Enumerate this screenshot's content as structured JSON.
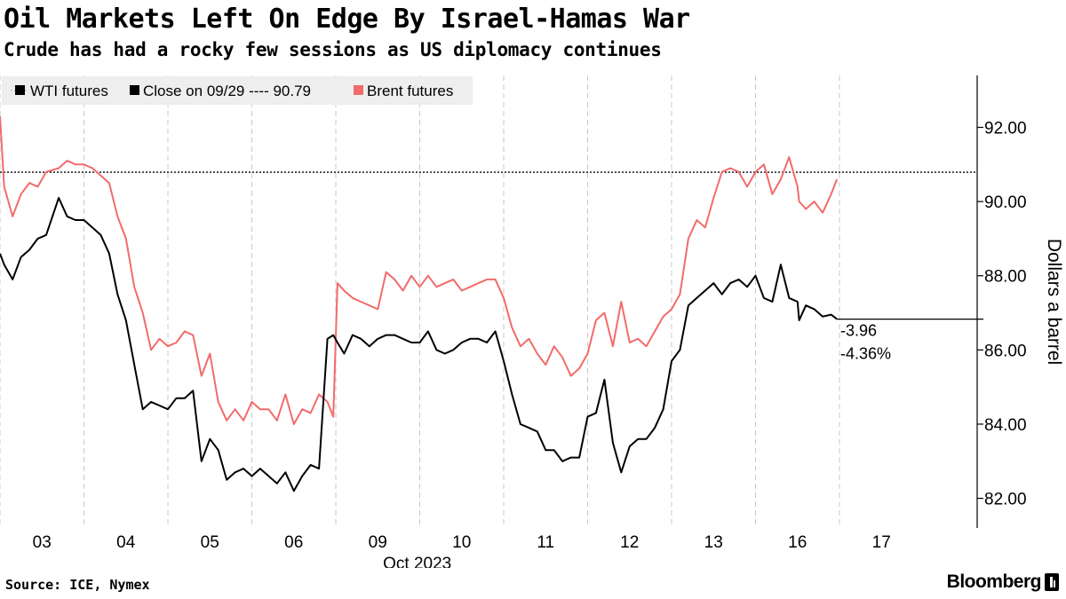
{
  "header": {
    "title": "Oil Markets Left On Edge By Israel-Hamas War",
    "subtitle": "Crude has had a rocky few sessions as US diplomacy continues"
  },
  "footer": {
    "source": "Source: ICE, Nymex",
    "brand": "Bloomberg"
  },
  "chart_data": {
    "type": "line",
    "ylabel": "Dollars a barrel",
    "ylim": [
      81.2,
      93.4
    ],
    "yticks": [
      "82.00",
      "84.00",
      "86.00",
      "88.00",
      "90.00",
      "92.00"
    ],
    "x_tick_labels": [
      "03",
      "04",
      "05",
      "06",
      "09",
      "10",
      "11",
      "12",
      "13",
      "16",
      "17"
    ],
    "x_period_label": "Oct 2023",
    "grid": "vertical dashed",
    "legend_position": "top-left",
    "legend": {
      "wti": "WTI futures",
      "close": "Close on 09/29 ---- 90.79",
      "brent": "Brent futures"
    },
    "reference_line": {
      "label": "Close on 09/29",
      "value": 90.79,
      "style": "dotted"
    },
    "annotation": {
      "value": 86.83,
      "change": "-3.96",
      "pct": "-4.36%"
    },
    "colors": {
      "wti": "#000000",
      "brent": "#f26b6b",
      "grid": "#c8c8c8",
      "legend_bg": "#eeeeee"
    },
    "series": [
      {
        "name": "Brent futures",
        "x": [
          0.0,
          0.05,
          0.15,
          0.25,
          0.35,
          0.45,
          0.55,
          0.7,
          0.8,
          0.9,
          1.0,
          1.1,
          1.2,
          1.3,
          1.4,
          1.5,
          1.6,
          1.7,
          1.8,
          1.9,
          2.0,
          2.1,
          2.2,
          2.3,
          2.4,
          2.5,
          2.6,
          2.7,
          2.8,
          2.9,
          3.0,
          3.1,
          3.2,
          3.3,
          3.4,
          3.5,
          3.6,
          3.7,
          3.8,
          3.9,
          3.97,
          4.02,
          4.1,
          4.2,
          4.3,
          4.4,
          4.5,
          4.6,
          4.7,
          4.8,
          4.9,
          5.0,
          5.1,
          5.2,
          5.3,
          5.4,
          5.5,
          5.6,
          5.7,
          5.8,
          5.9,
          6.0,
          6.1,
          6.2,
          6.3,
          6.4,
          6.5,
          6.6,
          6.7,
          6.8,
          6.9,
          7.0,
          7.1,
          7.2,
          7.3,
          7.4,
          7.5,
          7.6,
          7.7,
          7.8,
          7.9,
          8.0,
          8.1,
          8.2,
          8.3,
          8.4,
          8.5,
          8.6,
          8.7,
          8.8,
          8.9,
          9.0,
          9.1,
          9.2,
          9.3,
          9.4,
          9.5,
          9.52,
          9.6,
          9.7,
          9.8,
          9.9,
          9.97
        ],
        "values": [
          92.3,
          90.4,
          89.6,
          90.2,
          90.5,
          90.4,
          90.8,
          90.9,
          91.1,
          91.0,
          91.0,
          90.9,
          90.7,
          90.5,
          89.6,
          89.0,
          87.7,
          87.0,
          86.0,
          86.3,
          86.1,
          86.2,
          86.5,
          86.4,
          85.3,
          85.9,
          84.6,
          84.1,
          84.4,
          84.1,
          84.6,
          84.4,
          84.4,
          84.1,
          84.8,
          84.0,
          84.4,
          84.3,
          84.8,
          84.6,
          84.2,
          87.8,
          87.6,
          87.4,
          87.3,
          87.2,
          87.1,
          88.1,
          87.9,
          87.6,
          88.0,
          87.7,
          88.0,
          87.7,
          87.8,
          87.9,
          87.6,
          87.7,
          87.8,
          87.9,
          87.9,
          87.4,
          86.6,
          86.1,
          86.3,
          85.9,
          85.6,
          86.1,
          85.8,
          85.3,
          85.5,
          85.9,
          86.8,
          87.0,
          86.1,
          87.3,
          86.2,
          86.3,
          86.1,
          86.5,
          86.9,
          87.1,
          87.5,
          89.0,
          89.5,
          89.3,
          90.1,
          90.8,
          90.9,
          90.8,
          90.4,
          90.8,
          91.0,
          90.2,
          90.6,
          91.2,
          90.4,
          90.0,
          89.8,
          90.0,
          89.7,
          90.2,
          90.6
        ]
      },
      {
        "name": "WTI futures",
        "x": [
          0.0,
          0.05,
          0.15,
          0.25,
          0.35,
          0.45,
          0.55,
          0.7,
          0.8,
          0.9,
          1.0,
          1.1,
          1.2,
          1.3,
          1.4,
          1.5,
          1.6,
          1.7,
          1.8,
          1.9,
          2.0,
          2.1,
          2.2,
          2.3,
          2.4,
          2.5,
          2.6,
          2.7,
          2.8,
          2.9,
          3.0,
          3.1,
          3.2,
          3.3,
          3.4,
          3.5,
          3.6,
          3.7,
          3.8,
          3.9,
          3.97,
          4.02,
          4.1,
          4.2,
          4.3,
          4.4,
          4.5,
          4.6,
          4.7,
          4.8,
          4.9,
          5.0,
          5.1,
          5.2,
          5.3,
          5.4,
          5.5,
          5.6,
          5.7,
          5.8,
          5.9,
          6.0,
          6.1,
          6.2,
          6.3,
          6.4,
          6.5,
          6.6,
          6.7,
          6.8,
          6.9,
          7.0,
          7.1,
          7.2,
          7.3,
          7.4,
          7.5,
          7.6,
          7.7,
          7.8,
          7.9,
          8.0,
          8.1,
          8.2,
          8.3,
          8.4,
          8.5,
          8.6,
          8.7,
          8.8,
          8.9,
          9.0,
          9.1,
          9.2,
          9.3,
          9.4,
          9.5,
          9.52,
          9.6,
          9.7,
          9.8,
          9.9,
          9.97
        ],
        "values": [
          88.6,
          88.3,
          87.9,
          88.5,
          88.7,
          89.0,
          89.1,
          90.1,
          89.6,
          89.5,
          89.5,
          89.3,
          89.1,
          88.6,
          87.5,
          86.8,
          85.6,
          84.4,
          84.6,
          84.5,
          84.4,
          84.7,
          84.7,
          84.9,
          83.0,
          83.6,
          83.3,
          82.5,
          82.7,
          82.8,
          82.6,
          82.8,
          82.6,
          82.4,
          82.7,
          82.2,
          82.6,
          82.9,
          82.8,
          86.3,
          86.4,
          86.2,
          85.9,
          86.4,
          86.3,
          86.1,
          86.3,
          86.4,
          86.4,
          86.3,
          86.2,
          86.2,
          86.5,
          86.0,
          85.9,
          86.0,
          86.2,
          86.3,
          86.3,
          86.2,
          86.5,
          85.7,
          84.8,
          84.0,
          83.9,
          83.8,
          83.3,
          83.3,
          83.0,
          83.1,
          83.1,
          84.2,
          84.3,
          85.2,
          83.5,
          82.7,
          83.4,
          83.6,
          83.6,
          83.9,
          84.4,
          85.7,
          86.0,
          87.2,
          87.4,
          87.6,
          87.8,
          87.5,
          87.8,
          87.9,
          87.7,
          88.0,
          87.4,
          87.3,
          88.3,
          87.4,
          87.3,
          86.8,
          87.2,
          87.1,
          86.9,
          86.95,
          86.83
        ]
      }
    ]
  }
}
